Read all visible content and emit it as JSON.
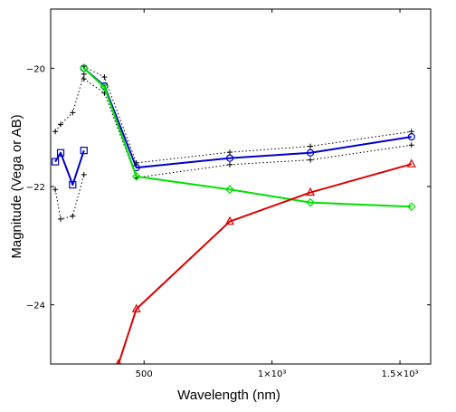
{
  "chart_data": {
    "type": "line",
    "title": "",
    "xlabel": "Wavelength (nm)",
    "ylabel": "Magnitude (Vega or AB)",
    "xlim": [
      135,
      1620
    ],
    "ylim": [
      -25,
      -19
    ],
    "y_inverted": true,
    "grid": false,
    "legend": "none",
    "x_ticks": [
      {
        "value": 500,
        "label": "500"
      },
      {
        "value": 1000,
        "label": "1×10³"
      },
      {
        "value": 1500,
        "label": "1.5×10³"
      }
    ],
    "y_ticks": [
      {
        "value": -20,
        "label": "−20"
      },
      {
        "value": -22,
        "label": "−22"
      },
      {
        "value": -24,
        "label": "−24"
      }
    ],
    "series": [
      {
        "color": "#0000cc",
        "marker": "square",
        "line": "solid",
        "x": [
          153,
          174,
          221,
          265
        ],
        "y": [
          -21.58,
          -21.43,
          -21.97,
          -21.39
        ]
      },
      {
        "color": "#000000",
        "marker": "plus",
        "line": "dotted",
        "x": [
          153,
          174,
          221,
          265
        ],
        "y": [
          -21.07,
          -20.95,
          -20.75,
          -20.1
        ]
      },
      {
        "color": "#000000",
        "marker": "plus",
        "line": "dotted",
        "x": [
          153,
          174,
          221,
          265
        ],
        "y": [
          -22.05,
          -22.55,
          -22.5,
          -21.8
        ]
      },
      {
        "color": "#0000cc",
        "marker": "circle",
        "line": "solid",
        "x": [
          265,
          345,
          470,
          835,
          1150,
          1545
        ],
        "y": [
          -20.0,
          -20.3,
          -21.68,
          -21.52,
          -21.43,
          -21.16
        ]
      },
      {
        "color": "#000000",
        "marker": "plus",
        "line": "dotted",
        "x": [
          265,
          345,
          470,
          835,
          1150,
          1545
        ],
        "y": [
          -19.97,
          -20.15,
          -21.6,
          -21.42,
          -21.32,
          -21.07
        ]
      },
      {
        "color": "#000000",
        "marker": "plus",
        "line": "dotted",
        "x": [
          265,
          345,
          470,
          835,
          1150,
          1545
        ],
        "y": [
          -20.18,
          -20.42,
          -21.85,
          -21.63,
          -21.55,
          -21.3
        ]
      },
      {
        "color": "#00e000",
        "marker": "diamond",
        "line": "solid",
        "x": [
          265,
          345,
          470,
          835,
          1150,
          1545
        ],
        "y": [
          -20.0,
          -20.32,
          -21.83,
          -22.05,
          -22.27,
          -22.34
        ]
      },
      {
        "color": "#dd0000",
        "marker": "triangle",
        "line": "solid",
        "x": [
          400,
          470,
          835,
          1150,
          1545
        ],
        "y": [
          -25.0,
          -24.07,
          -22.59,
          -22.1,
          -21.62
        ]
      }
    ]
  }
}
